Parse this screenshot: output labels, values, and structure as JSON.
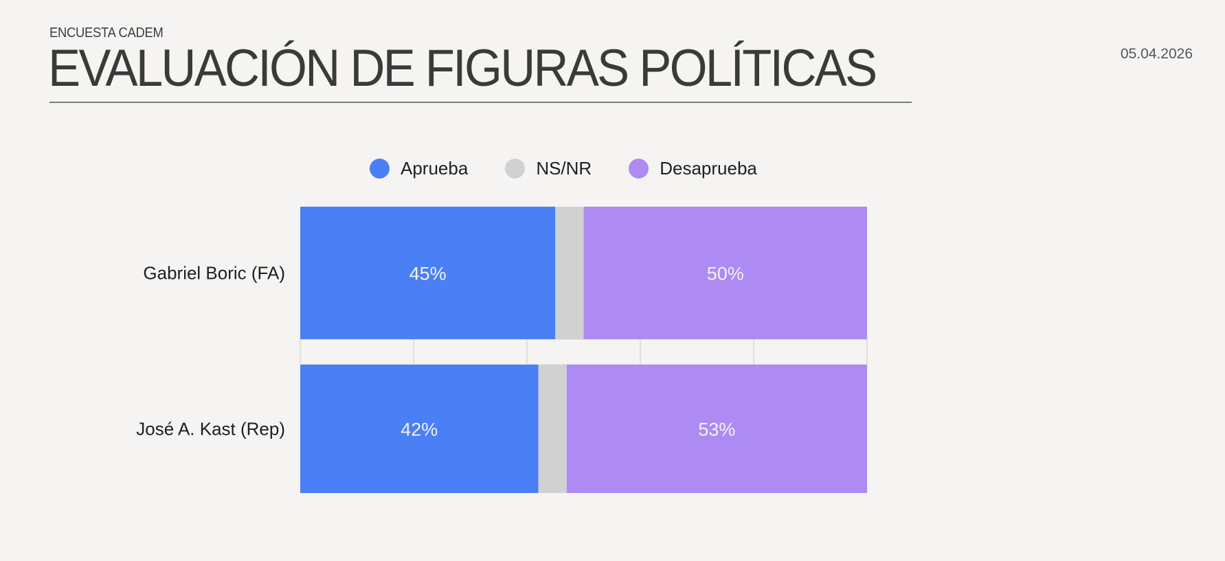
{
  "header": {
    "eyebrow": "ENCUESTA CADEM",
    "title": "EVALUACIÓN DE FIGURAS POLÍTICAS",
    "date": "05.04.2026"
  },
  "colors": {
    "background": "#f5f4f2",
    "aprueba": "#4a7ff5",
    "nsnr": "#d1d1d1",
    "desaprueba": "#ad8bf3",
    "gridline": "#d6d6d6"
  },
  "chart_data": {
    "type": "bar",
    "orientation": "horizontal",
    "stacked": true,
    "title": "EVALUACIÓN DE FIGURAS POLÍTICAS",
    "categories": [
      "Gabriel Boric (FA)",
      "José A. Kast (Rep)"
    ],
    "series": [
      {
        "name": "Aprueba",
        "key": "aprueba",
        "values": [
          45,
          42
        ],
        "labels": [
          "45%",
          "42%"
        ],
        "show_labels": true
      },
      {
        "name": "NS/NR",
        "key": "nsnr",
        "values": [
          5,
          5
        ],
        "labels": [
          "",
          ""
        ],
        "show_labels": false
      },
      {
        "name": "Desaprueba",
        "key": "desaprueba",
        "values": [
          50,
          53
        ],
        "labels": [
          "50%",
          "53%"
        ],
        "show_labels": true
      }
    ],
    "xlim": [
      0,
      100
    ],
    "x_gridlines": [
      0,
      20,
      40,
      60,
      80,
      100
    ],
    "grid": true,
    "legend": {
      "placement": "top-center",
      "entries": [
        "Aprueba",
        "NS/NR",
        "Desaprueba"
      ]
    },
    "xlabel": "",
    "ylabel": ""
  }
}
